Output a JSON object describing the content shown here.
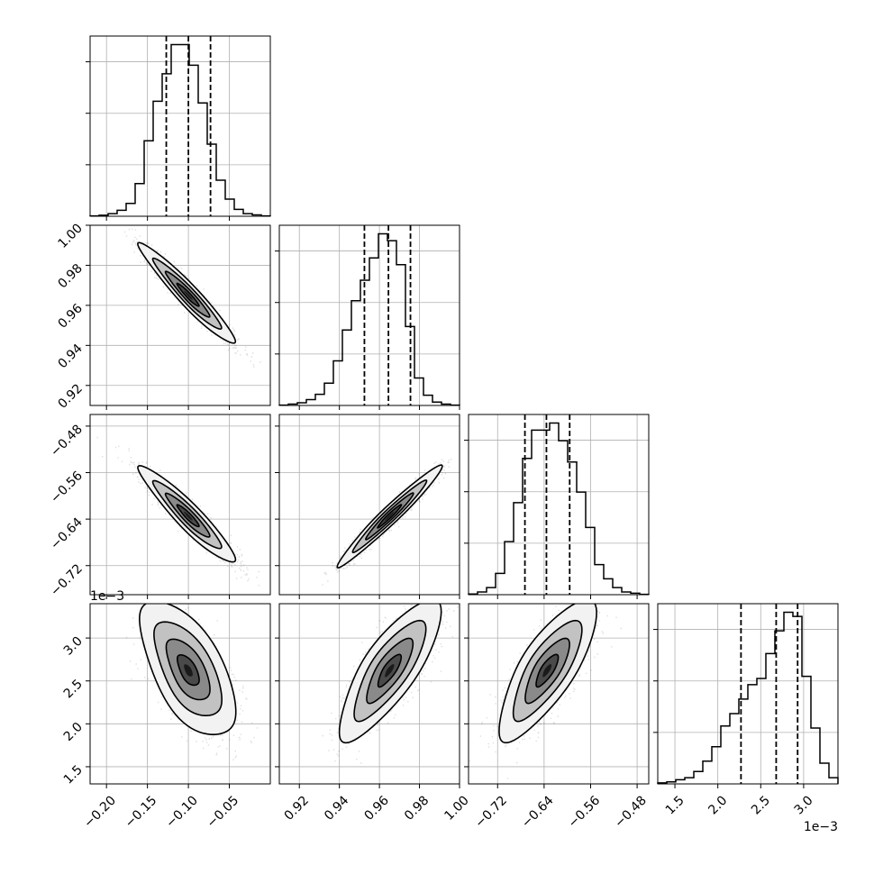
{
  "chart_data": {
    "type": "corner",
    "grid": true,
    "parameters": [
      {
        "range": [
          -0.22,
          0.0
        ],
        "ticks": [
          -0.2,
          -0.15,
          -0.1,
          -0.05
        ],
        "tick_labels": [
          "−0.20",
          "−0.15",
          "−0.10",
          "−0.05"
        ],
        "quantiles": [
          -0.127,
          -0.1,
          -0.073
        ],
        "offset": ""
      },
      {
        "range": [
          0.91,
          1.0
        ],
        "ticks": [
          0.92,
          0.94,
          0.96,
          0.98,
          1.0
        ],
        "tick_labels": [
          "0.92",
          "0.94",
          "0.96",
          "0.98",
          "1.00"
        ],
        "quantiles": [
          0.9525,
          0.9645,
          0.9755
        ],
        "offset": ""
      },
      {
        "range": [
          -0.77,
          -0.46
        ],
        "ticks": [
          -0.72,
          -0.64,
          -0.56,
          -0.48
        ],
        "tick_labels": [
          "−0.72",
          "−0.64",
          "−0.56",
          "−0.48"
        ],
        "quantiles": [
          -0.673,
          -0.636,
          -0.596
        ],
        "offset": ""
      },
      {
        "range": [
          1.3,
          3.4
        ],
        "ticks": [
          1.5,
          2.0,
          2.5,
          3.0
        ],
        "tick_labels": [
          "1.5",
          "2.0",
          "2.5",
          "3.0"
        ],
        "quantiles": [
          2.27,
          2.68,
          2.93
        ],
        "offset": "1e−3"
      }
    ],
    "histograms": [
      [
        0.2,
        0.6,
        1.5,
        3.5,
        7.5,
        19,
        44,
        67,
        83,
        100,
        100,
        88,
        66,
        42,
        21,
        10,
        4,
        1.5,
        0.8,
        0.2
      ],
      [
        0.2,
        0.8,
        1.6,
        3.4,
        6.5,
        13,
        26,
        44,
        61,
        73,
        86,
        100,
        96,
        82,
        46,
        16,
        6,
        2,
        0.8,
        0.2
      ],
      [
        0.4,
        1.5,
        4,
        12,
        30,
        52,
        77,
        93,
        93,
        97,
        87,
        75,
        58,
        38,
        17,
        9,
        4,
        1.5,
        0.8,
        0.2
      ],
      [
        0.5,
        1,
        2,
        3,
        6,
        11,
        18,
        28,
        34,
        41,
        48,
        51,
        63,
        74,
        83,
        81,
        52,
        27,
        10,
        3
      ]
    ],
    "joint": [
      {
        "row": 1,
        "col": 0,
        "center": [
          -0.1,
          0.965
        ],
        "sd": [
          0.027,
          0.0115
        ],
        "corr": -0.96
      },
      {
        "row": 2,
        "col": 0,
        "center": [
          -0.1,
          -0.635
        ],
        "sd": [
          0.027,
          0.038
        ],
        "corr": -0.94
      },
      {
        "row": 2,
        "col": 1,
        "center": [
          0.965,
          -0.635
        ],
        "sd": [
          0.0115,
          0.038
        ],
        "corr": 0.97
      },
      {
        "row": 3,
        "col": 0,
        "center": [
          -0.1,
          2.62
        ],
        "sd": [
          0.027,
          0.36
        ],
        "corr": -0.62
      },
      {
        "row": 3,
        "col": 1,
        "center": [
          0.965,
          2.62
        ],
        "sd": [
          0.0115,
          0.36
        ],
        "corr": 0.78
      },
      {
        "row": 3,
        "col": 2,
        "center": [
          -0.635,
          2.62
        ],
        "sd": [
          0.038,
          0.36
        ],
        "corr": 0.76
      }
    ]
  }
}
